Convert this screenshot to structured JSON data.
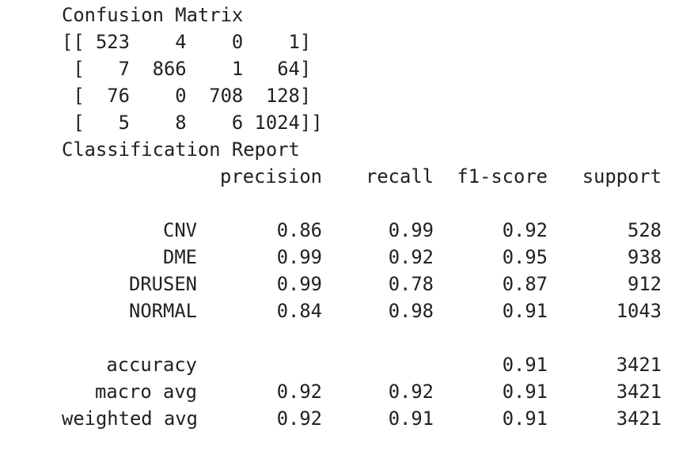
{
  "confusion_matrix": {
    "title": "Confusion Matrix",
    "rows": [
      "[[ 523    4    0    1]",
      " [   7  866    1   64]",
      " [  76    0  708  128]",
      " [   5    8    6 1024]]"
    ]
  },
  "classification_report": {
    "title": "Classification Report",
    "headers": [
      "precision",
      "recall",
      "f1-score",
      "support"
    ],
    "class_rows": [
      {
        "label": "CNV",
        "values": [
          "0.86",
          "0.99",
          "0.92",
          "528"
        ]
      },
      {
        "label": "DME",
        "values": [
          "0.99",
          "0.92",
          "0.95",
          "938"
        ]
      },
      {
        "label": "DRUSEN",
        "values": [
          "0.99",
          "0.78",
          "0.87",
          "912"
        ]
      },
      {
        "label": "NORMAL",
        "values": [
          "0.84",
          "0.98",
          "0.91",
          "1043"
        ]
      }
    ],
    "summary_rows": [
      {
        "label": "accuracy",
        "values": [
          "",
          "",
          "0.91",
          "3421"
        ]
      },
      {
        "label": "macro avg",
        "values": [
          "0.92",
          "0.92",
          "0.91",
          "3421"
        ]
      },
      {
        "label": "weighted avg",
        "values": [
          "0.92",
          "0.91",
          "0.91",
          "3421"
        ]
      }
    ]
  }
}
